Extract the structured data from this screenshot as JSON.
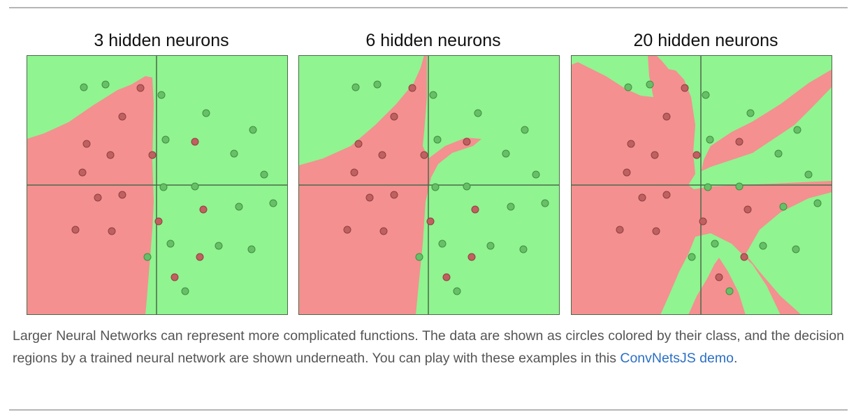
{
  "figure": {
    "panels": [
      {
        "title": "3 hidden neurons"
      },
      {
        "title": "6 hidden neurons"
      },
      {
        "title": "20 hidden neurons"
      }
    ],
    "colors": {
      "green_region": "#90f490",
      "red_region": "#f49090",
      "green_point": "#67c067",
      "red_point": "#c06060",
      "axis": "#4a6a4a"
    }
  },
  "caption": {
    "text": "Larger Neural Networks can represent more complicated functions. The data are shown as circles colored by their class, and the decision regions by a trained neural network are shown underneath. You can play with these examples in this ",
    "link_text": "ConvNetsJS demo",
    "end": "."
  }
}
